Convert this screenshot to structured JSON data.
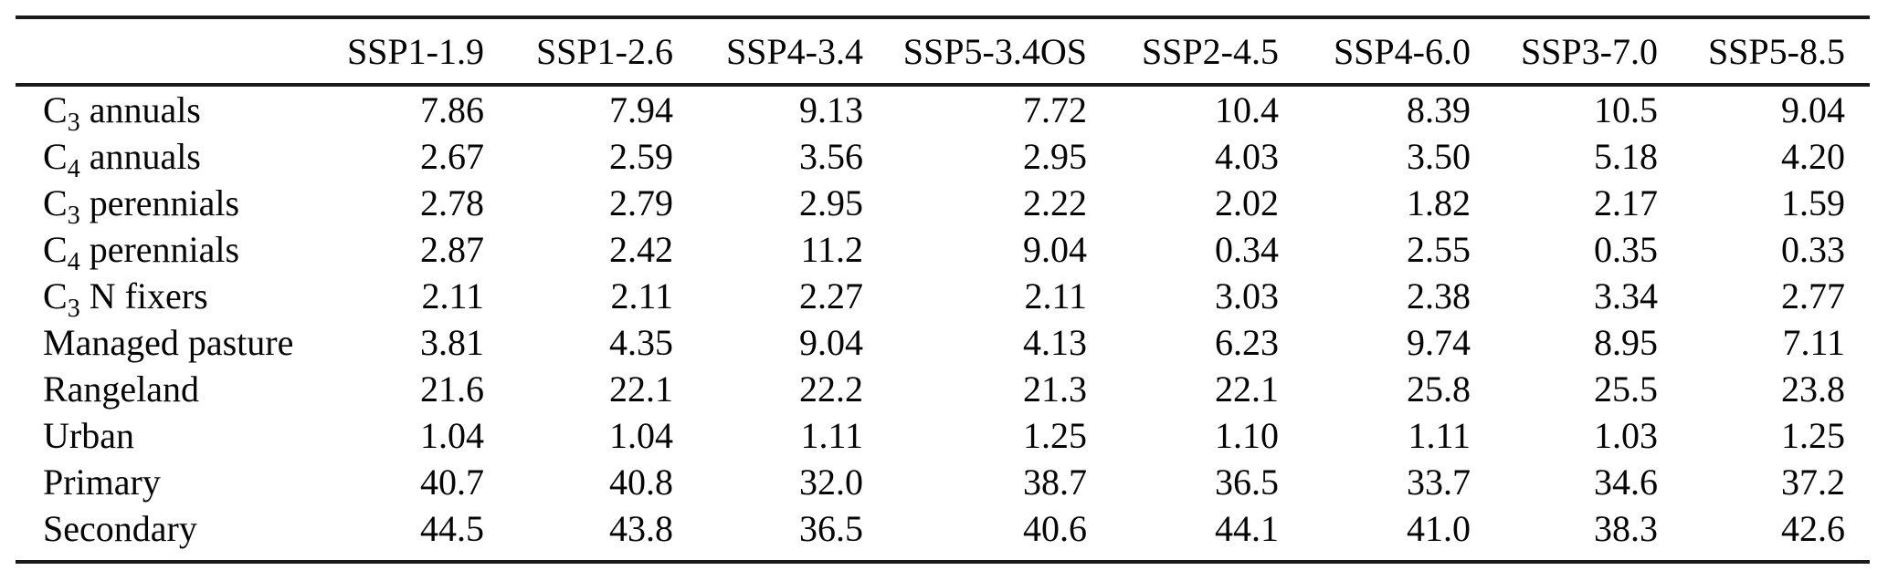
{
  "table": {
    "corner_label": "",
    "columns": [
      "SSP1-1.9",
      "SSP1-2.6",
      "SSP4-3.4",
      "SSP5-3.4OS",
      "SSP2-4.5",
      "SSP4-6.0",
      "SSP3-7.0",
      "SSP5-8.5"
    ],
    "rows": [
      {
        "label": "C_3 annuals",
        "values": [
          "7.86",
          "7.94",
          "9.13",
          "7.72",
          "10.4",
          "8.39",
          "10.5",
          "9.04"
        ]
      },
      {
        "label": "C_4 annuals",
        "values": [
          "2.67",
          "2.59",
          "3.56",
          "2.95",
          "4.03",
          "3.50",
          "5.18",
          "4.20"
        ]
      },
      {
        "label": "C_3 perennials",
        "values": [
          "2.78",
          "2.79",
          "2.95",
          "2.22",
          "2.02",
          "1.82",
          "2.17",
          "1.59"
        ]
      },
      {
        "label": "C_4 perennials",
        "values": [
          "2.87",
          "2.42",
          "11.2",
          "9.04",
          "0.34",
          "2.55",
          "0.35",
          "0.33"
        ]
      },
      {
        "label": "C_3 N fixers",
        "values": [
          "2.11",
          "2.11",
          "2.27",
          "2.11",
          "3.03",
          "2.38",
          "3.34",
          "2.77"
        ]
      },
      {
        "label": "Managed pasture",
        "values": [
          "3.81",
          "4.35",
          "9.04",
          "4.13",
          "6.23",
          "9.74",
          "8.95",
          "7.11"
        ]
      },
      {
        "label": "Rangeland",
        "values": [
          "21.6",
          "22.1",
          "22.2",
          "21.3",
          "22.1",
          "25.8",
          "25.5",
          "23.8"
        ]
      },
      {
        "label": "Urban",
        "values": [
          "1.04",
          "1.04",
          "1.11",
          "1.25",
          "1.10",
          "1.11",
          "1.03",
          "1.25"
        ]
      },
      {
        "label": "Primary",
        "values": [
          "40.7",
          "40.8",
          "32.0",
          "38.7",
          "36.5",
          "33.7",
          "34.6",
          "37.2"
        ]
      },
      {
        "label": "Secondary",
        "values": [
          "44.5",
          "43.8",
          "36.5",
          "40.6",
          "44.1",
          "41.0",
          "38.3",
          "42.6"
        ]
      }
    ],
    "rule_color": "#1a1a1a",
    "text_color": "#050505"
  }
}
